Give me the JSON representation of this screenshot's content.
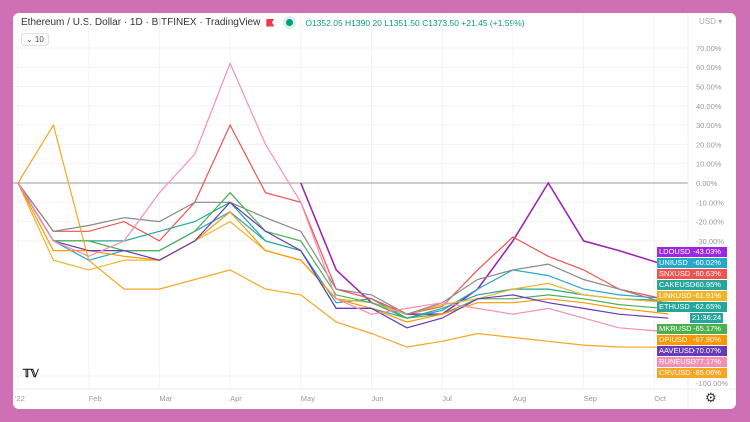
{
  "header": {
    "title": "Ethereum / U.S. Dollar · 1D · BITFINEX · TradingView",
    "ohlc": "O1352.05 H1390.20 L1351.50 C1373.50 +21.45 (+1.59%)",
    "indicators_toggle": "⌄ 10",
    "currency": "USD ▾"
  },
  "chart_data": {
    "type": "line",
    "ylabel": "",
    "yticks": [
      "70.00%",
      "60.00%",
      "50.00%",
      "40.00%",
      "30.00%",
      "20.00%",
      "10.00%",
      "0.00%",
      "-10.00%",
      "-20.00%",
      "-30.00%",
      "-100.00%"
    ],
    "xticks": [
      "'22",
      "Feb",
      "Mar",
      "Apr",
      "May",
      "Jun",
      "Jul",
      "Aug",
      "Sep",
      "Oct"
    ],
    "ylim": [
      -100,
      75
    ],
    "x_months": [
      0,
      0.5,
      1,
      1.5,
      2,
      2.5,
      3,
      3.5,
      4,
      4.5,
      5,
      5.5,
      6,
      6.5,
      7,
      7.5,
      8,
      8.5,
      9.2
    ],
    "series": [
      {
        "name": "LDOUSD",
        "label": "-43.03%",
        "color": "#9c27b0",
        "values": [
          null,
          null,
          null,
          null,
          null,
          null,
          null,
          null,
          0,
          -45,
          -62,
          -68,
          -68,
          -55,
          -30,
          0,
          -30,
          -35,
          -43.03
        ]
      },
      {
        "name": "UNIUSD",
        "label": "-60.02%",
        "color": "#26a9c8",
        "values": [
          0,
          -30,
          -40,
          -35,
          -35,
          -25,
          -15,
          -30,
          -35,
          -62,
          -60,
          -70,
          -66,
          -55,
          -45,
          -48,
          -55,
          -58,
          -60.02
        ]
      },
      {
        "name": "SNXUSD",
        "label": "-60.63%",
        "color": "#ef5350",
        "values": [
          0,
          -25,
          -25,
          -20,
          -30,
          -10,
          30,
          -5,
          -10,
          -55,
          -60,
          -68,
          -64,
          -45,
          -28,
          -38,
          -45,
          -55,
          -60.63
        ]
      },
      {
        "name": "CAKEUSD",
        "label": "-60.95%",
        "color": "#26a69a",
        "values": [
          0,
          -30,
          -30,
          -30,
          -25,
          -20,
          -10,
          -30,
          -35,
          -65,
          -65,
          -70,
          -65,
          -58,
          -55,
          -55,
          -58,
          -60,
          -60.95
        ]
      },
      {
        "name": "LINKUSD",
        "label": "-61.91%",
        "color": "#f0b429",
        "values": [
          0,
          -40,
          -45,
          -40,
          -40,
          -30,
          -20,
          -35,
          -40,
          -60,
          -62,
          -68,
          -63,
          -60,
          -55,
          -52,
          -58,
          -60,
          -61.91
        ]
      },
      {
        "name": "ETHUSD",
        "label": "-62.65%",
        "color": "#888888",
        "values": [
          0,
          -25,
          -22,
          -18,
          -20,
          -10,
          -10,
          -18,
          -25,
          -55,
          -58,
          -68,
          -62,
          -50,
          -45,
          -42,
          -50,
          -55,
          -62.65
        ]
      },
      {
        "name": "MKRUSD",
        "label": "-65.17%",
        "color": "#4caf50",
        "values": [
          0,
          -30,
          -30,
          -35,
          -35,
          -25,
          -5,
          -25,
          -30,
          -58,
          -62,
          -70,
          -68,
          -60,
          -60,
          -58,
          -60,
          -63,
          -65.17
        ]
      },
      {
        "name": "DPIUSD",
        "label": "-67.80%",
        "color": "#ff9800",
        "values": [
          0,
          -35,
          -35,
          -38,
          -40,
          -30,
          -15,
          -35,
          -40,
          -60,
          -65,
          -72,
          -68,
          -62,
          -62,
          -60,
          -62,
          -65,
          -67.8
        ]
      },
      {
        "name": "AAVEUSD",
        "label": "-70.07%",
        "color": "#673ab7",
        "values": [
          0,
          -30,
          -35,
          -35,
          -40,
          -30,
          -10,
          -25,
          -35,
          -65,
          -65,
          -75,
          -70,
          -60,
          -58,
          -62,
          -65,
          -68,
          -70.07
        ]
      },
      {
        "name": "RUNEUSD",
        "label": "-77.17%",
        "color": "#f48fb1",
        "values": [
          0,
          -30,
          -38,
          -30,
          -5,
          15,
          62,
          20,
          -10,
          -60,
          -68,
          -65,
          -62,
          -65,
          -68,
          -65,
          -70,
          -75,
          -77.17
        ]
      },
      {
        "name": "CRVUSD",
        "label": "-85.06%",
        "color": "#f5a623",
        "values": [
          0,
          30,
          -40,
          -55,
          -55,
          -50,
          -45,
          -55,
          -58,
          -72,
          -78,
          -85,
          -82,
          -78,
          -80,
          -82,
          -84,
          -85,
          -85.06
        ]
      }
    ]
  },
  "eth_countdown": "21:36:24",
  "logo": "TV"
}
